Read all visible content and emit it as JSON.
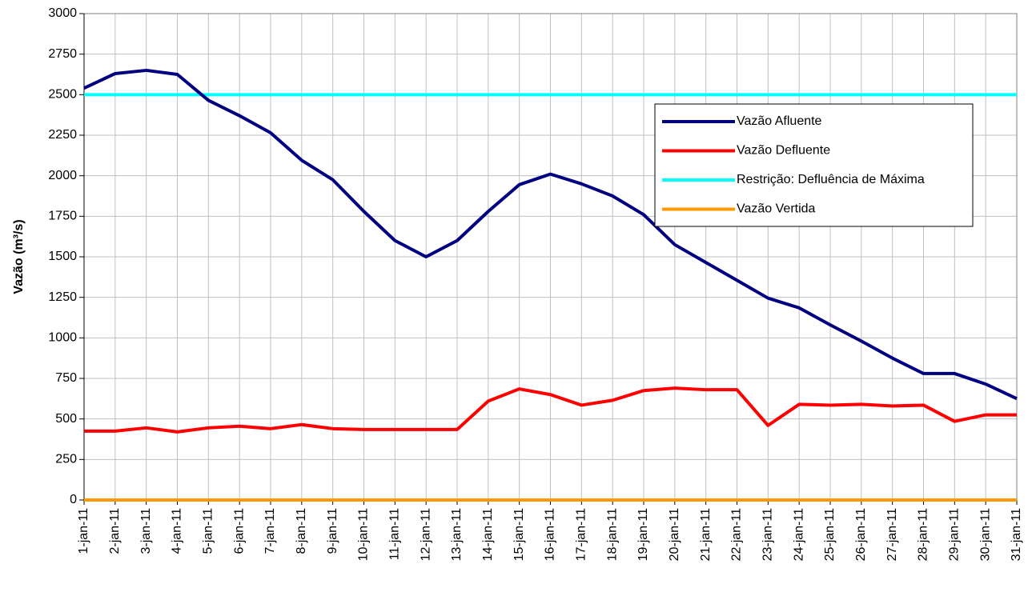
{
  "chart_data": {
    "type": "line",
    "y_label": "Vazão (m³/s)",
    "categories": [
      "1-jan-11",
      "2-jan-11",
      "3-jan-11",
      "4-jan-11",
      "5-jan-11",
      "6-jan-11",
      "7-jan-11",
      "8-jan-11",
      "9-jan-11",
      "10-jan-11",
      "11-jan-11",
      "12-jan-11",
      "13-jan-11",
      "14-jan-11",
      "15-jan-11",
      "16-jan-11",
      "17-jan-11",
      "18-jan-11",
      "19-jan-11",
      "20-jan-11",
      "21-jan-11",
      "22-jan-11",
      "23-jan-11",
      "24-jan-11",
      "25-jan-11",
      "26-jan-11",
      "27-jan-11",
      "28-jan-11",
      "29-jan-11",
      "30-jan-11",
      "31-jan-11"
    ],
    "series": [
      {
        "name": "Vazão Afluente",
        "color": "#000080",
        "values": [
          2540,
          2630,
          2650,
          2625,
          2465,
          2370,
          2265,
          2095,
          1975,
          1780,
          1600,
          1500,
          1600,
          1780,
          1945,
          2010,
          1950,
          1875,
          1760,
          1575,
          1465,
          1355,
          1245,
          1185,
          1080,
          980,
          875,
          780,
          780,
          715,
          625
        ]
      },
      {
        "name": "Vazão Defluente",
        "color": "#ff0000",
        "values": [
          425,
          425,
          445,
          420,
          445,
          455,
          440,
          465,
          440,
          435,
          435,
          435,
          435,
          610,
          685,
          650,
          585,
          615,
          675,
          690,
          680,
          680,
          460,
          590,
          585,
          590,
          580,
          585,
          485,
          525,
          525
        ]
      },
      {
        "name": "Restrição: Defluência de Máxima",
        "color": "#00ffff",
        "values": [
          2500,
          2500,
          2500,
          2500,
          2500,
          2500,
          2500,
          2500,
          2500,
          2500,
          2500,
          2500,
          2500,
          2500,
          2500,
          2500,
          2500,
          2500,
          2500,
          2500,
          2500,
          2500,
          2500,
          2500,
          2500,
          2500,
          2500,
          2500,
          2500,
          2500,
          2500
        ]
      },
      {
        "name": "Vazão Vertida",
        "color": "#ff9900",
        "values": [
          0,
          0,
          0,
          0,
          0,
          0,
          0,
          0,
          0,
          0,
          0,
          0,
          0,
          0,
          0,
          0,
          0,
          0,
          0,
          0,
          0,
          0,
          0,
          0,
          0,
          0,
          0,
          0,
          0,
          0,
          0
        ]
      }
    ],
    "ylim": [
      0,
      3000
    ],
    "yticks": [
      0,
      250,
      500,
      750,
      1000,
      1250,
      1500,
      1750,
      2000,
      2250,
      2500,
      2750,
      3000
    ],
    "grid": true
  }
}
